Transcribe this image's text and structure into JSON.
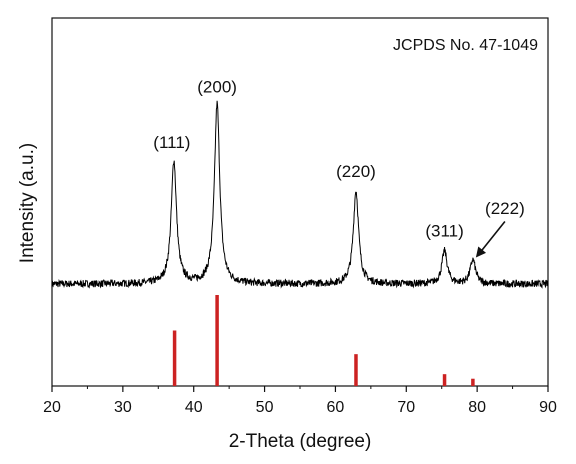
{
  "chart_data": {
    "type": "line",
    "title": "",
    "xlabel": "2-Theta (degree)",
    "ylabel": "Intensity (a.u.)",
    "xlim": [
      20,
      90
    ],
    "xticks": [
      20,
      30,
      40,
      50,
      60,
      70,
      80,
      90
    ],
    "y_ticks_shown": false,
    "grid": false,
    "legend": "none",
    "reference_label": "JCPDS No. 47-1049",
    "pattern_color": "#000000",
    "reference_color": "#cc2222",
    "pattern": {
      "baseline": 0.0,
      "noise": 0.012,
      "peaks": [
        {
          "hkl": "(111)",
          "two_theta": 37.2,
          "intensity": 0.41
        },
        {
          "hkl": "(200)",
          "two_theta": 43.3,
          "intensity": 0.6
        },
        {
          "hkl": "(220)",
          "two_theta": 62.9,
          "intensity": 0.31
        },
        {
          "hkl": "(311)",
          "two_theta": 75.4,
          "intensity": 0.11
        },
        {
          "hkl": "(222)",
          "two_theta": 79.4,
          "intensity": 0.08
        }
      ]
    },
    "peak_labels": [
      {
        "text": "(111)",
        "two_theta": 37.2
      },
      {
        "text": "(200)",
        "two_theta": 43.3
      },
      {
        "text": "(220)",
        "two_theta": 62.9
      },
      {
        "text": "(311)",
        "two_theta": 75.4
      },
      {
        "text": "(222)",
        "two_theta": 79.4
      }
    ],
    "reference_lines": [
      {
        "two_theta": 37.3,
        "intensity": 0.61
      },
      {
        "two_theta": 43.3,
        "intensity": 1.0
      },
      {
        "two_theta": 62.9,
        "intensity": 0.35
      },
      {
        "two_theta": 75.4,
        "intensity": 0.13
      },
      {
        "two_theta": 79.4,
        "intensity": 0.08
      }
    ]
  }
}
